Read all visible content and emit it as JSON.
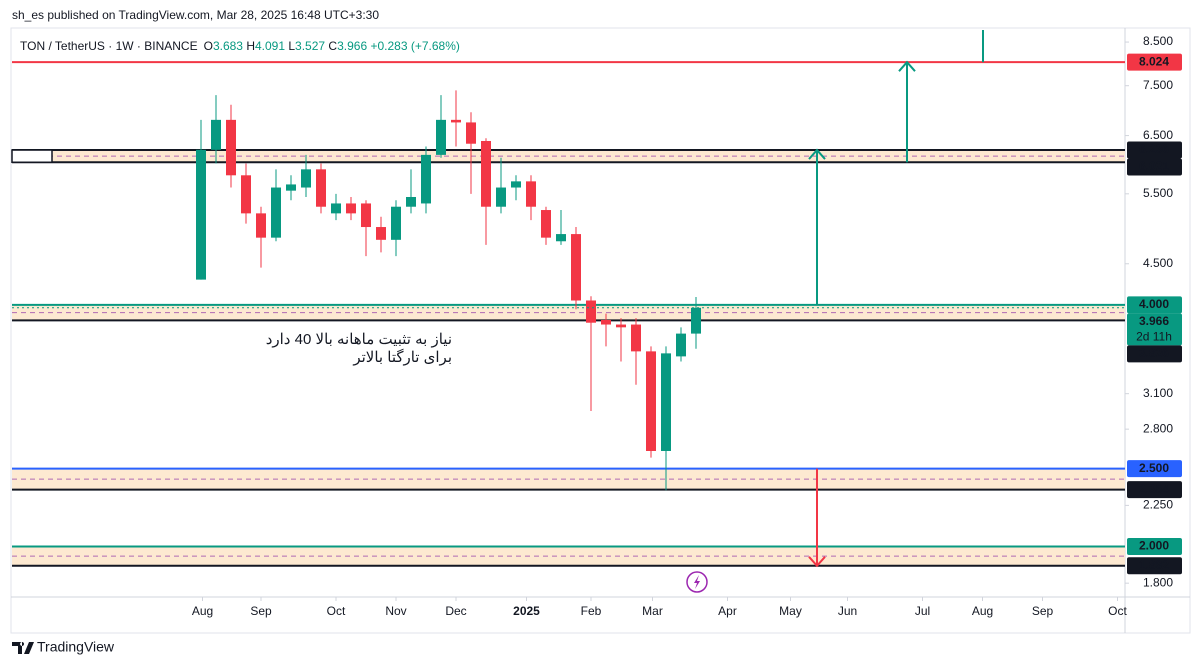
{
  "chart_data": {
    "type": "candlestick",
    "published": "sh_es published on TradingView.com, Mar 28, 2025 16:48 UTC+3:30",
    "title": "TON / TetherUS · 1W · BINANCE",
    "legend": [
      {
        "label": "O",
        "value": "3.683"
      },
      {
        "label": "H",
        "value": "4.091"
      },
      {
        "label": "L",
        "value": "3.527"
      },
      {
        "label": "C",
        "value": "3.966"
      }
    ],
    "change": "+0.283 (+7.68%)",
    "up_color": "#089981",
    "down_color": "#f23645",
    "x": [
      0,
      1,
      2,
      3,
      4,
      5,
      6,
      7,
      8,
      9,
      10,
      11,
      12,
      13,
      14,
      15,
      16,
      17,
      18,
      19,
      20,
      21,
      22,
      23,
      24,
      25,
      26,
      27,
      28,
      29,
      30,
      31,
      32,
      33
    ],
    "open": [
      4.3,
      6.24,
      6.8,
      5.8,
      5.2,
      4.85,
      5.55,
      5.6,
      5.9,
      5.2,
      5.35,
      5.35,
      5.0,
      4.82,
      5.3,
      5.35,
      6.15,
      6.8,
      6.75,
      6.4,
      5.3,
      5.6,
      5.7,
      5.25,
      4.8,
      4.9,
      4.05,
      3.83,
      3.78,
      3.78,
      3.5,
      2.63,
      3.45,
      3.683
    ],
    "high": [
      6.8,
      7.3,
      7.1,
      6.0,
      5.3,
      5.9,
      5.8,
      6.15,
      6.0,
      5.5,
      5.45,
      5.4,
      5.15,
      5.4,
      5.9,
      6.3,
      7.3,
      7.4,
      6.95,
      6.45,
      6.1,
      5.8,
      5.8,
      5.3,
      5.25,
      5.0,
      4.1,
      3.9,
      3.85,
      3.85,
      3.55,
      3.55,
      3.75,
      4.091
    ],
    "low": [
      4.3,
      6.0,
      5.6,
      5.05,
      4.45,
      4.8,
      5.4,
      5.45,
      5.2,
      5.1,
      5.1,
      4.6,
      4.65,
      4.6,
      5.2,
      5.2,
      6.1,
      6.3,
      5.5,
      4.75,
      5.2,
      5.4,
      5.1,
      4.75,
      4.75,
      3.95,
      2.95,
      3.55,
      3.4,
      3.18,
      2.58,
      2.35,
      3.4,
      3.527
    ],
    "close": [
      6.24,
      6.8,
      5.8,
      5.2,
      4.85,
      5.6,
      5.65,
      5.9,
      5.3,
      5.35,
      5.2,
      5.0,
      4.82,
      5.3,
      5.45,
      6.15,
      6.8,
      6.75,
      6.35,
      5.3,
      5.6,
      5.7,
      5.3,
      4.85,
      4.9,
      4.05,
      3.8,
      3.78,
      3.75,
      3.5,
      2.63,
      3.48,
      3.683,
      3.966
    ],
    "countdown": "2d 11h",
    "log": true,
    "ylim": [
      1.73,
      8.85
    ],
    "yticks": [
      {
        "value": 8.5,
        "label": "8.500"
      },
      {
        "value": 7.5,
        "label": "7.500"
      },
      {
        "value": 6.5,
        "label": "6.500"
      },
      {
        "value": 5.5,
        "label": "5.500"
      },
      {
        "value": 4.5,
        "label": "4.500"
      },
      {
        "value": 3.1,
        "label": "3.100"
      },
      {
        "value": 2.8,
        "label": "2.800"
      },
      {
        "value": 2.25,
        "label": "2.250"
      },
      {
        "value": 1.8,
        "label": "1.800"
      }
    ],
    "xlim": [
      -12.6,
      61.6
    ],
    "xticks": [
      {
        "value": 0.1,
        "label": "Aug"
      },
      {
        "value": 4.0,
        "label": "Sep"
      },
      {
        "value": 9.0,
        "label": "Oct"
      },
      {
        "value": 13.0,
        "label": "Nov"
      },
      {
        "value": 17.0,
        "label": "Dec"
      },
      {
        "value": 21.7,
        "label": "2025"
      },
      {
        "value": 26.0,
        "label": "Feb"
      },
      {
        "value": 30.1,
        "label": "Mar"
      },
      {
        "value": 35.1,
        "label": "Apr"
      },
      {
        "value": 39.3,
        "label": "May"
      },
      {
        "value": 43.1,
        "label": "Jun"
      },
      {
        "value": 48.1,
        "label": "Jul"
      },
      {
        "value": 52.1,
        "label": "Aug"
      },
      {
        "value": 56.1,
        "label": "Sep"
      },
      {
        "value": 61.1,
        "label": "Oct"
      }
    ],
    "levels": [
      {
        "value": 8.024,
        "color": "#f23645"
      }
    ],
    "zones": [
      {
        "top": 6.236,
        "bottom": 6.021,
        "top_color": "#131722",
        "bottom_color": "#131722"
      },
      {
        "top": {
          "value": 4,
          "label": "4.000"
        },
        "bottom": 3.826,
        "top_color": "#089981",
        "bottom_color": "#131722"
      },
      {
        "top": {
          "value": 2.5,
          "label": "2.500"
        },
        "bottom": 2.354,
        "top_color": "#2962ff",
        "bottom_color": "#131722"
      },
      {
        "top": {
          "value": 2,
          "label": "2.000"
        },
        "bottom": 1.892,
        "top_color": "#089981",
        "bottom_color": "#131722"
      }
    ],
    "annotation": [
      "نیاز به تثبیت ماهانه بالا 40 دارد",
      "برای تارگتا بالاتر"
    ],
    "brand": "TradingView"
  }
}
